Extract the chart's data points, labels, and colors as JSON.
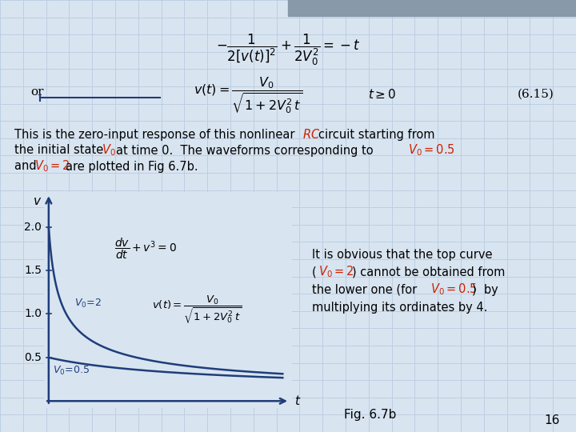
{
  "background_color": "#d8e4f0",
  "grid_color": "#b8cce0",
  "curve_color": "#1f3d7a",
  "axis_color": "#1f3d7a",
  "label_color_italic": "#1f3d7a",
  "red_italic": "#cc2200",
  "yticks": [
    0.5,
    1.0,
    1.5,
    2.0
  ],
  "V0_2": 2.0,
  "V0_05": 0.5,
  "t_max": 5.0,
  "fig_width": 7.2,
  "fig_height": 5.4,
  "dpi": 100
}
